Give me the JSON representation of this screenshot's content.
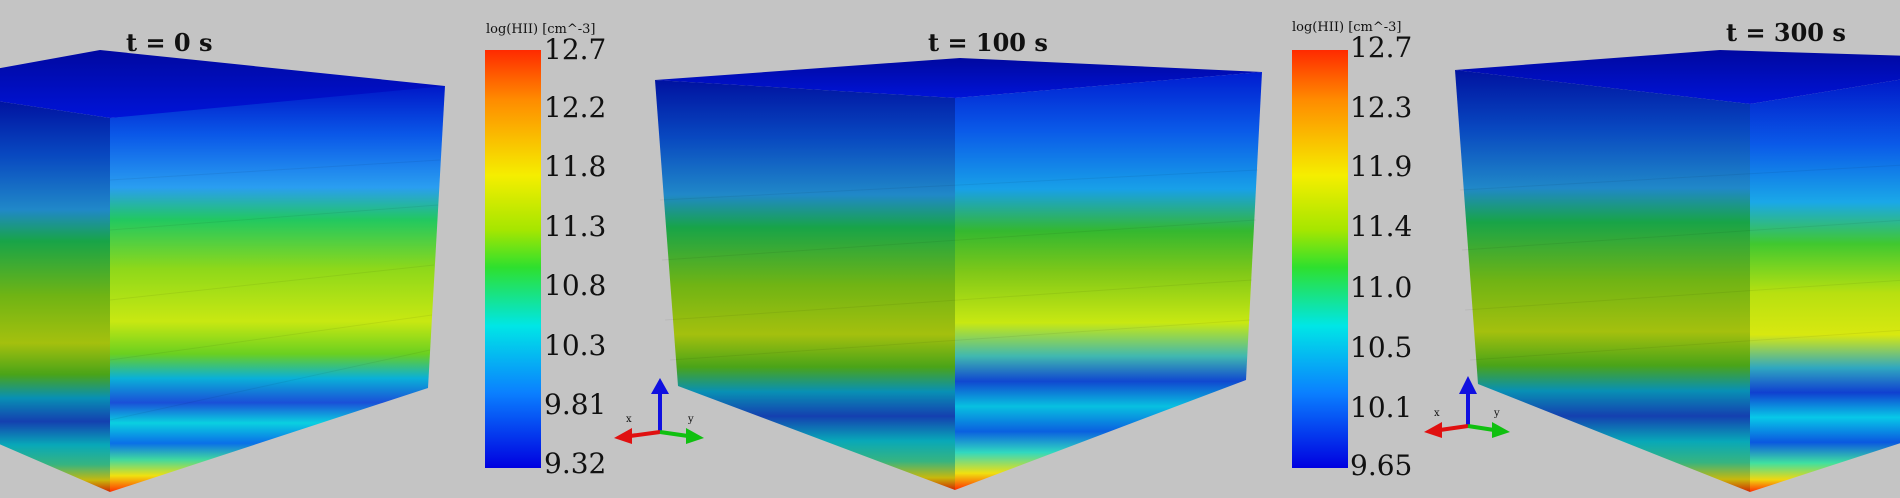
{
  "panels": [
    {
      "time_label": "t = 0 s"
    },
    {
      "time_label": "t = 100 s"
    },
    {
      "time_label": "t = 300 s"
    }
  ],
  "colorbars": [
    {
      "title": "log(HII) [cm^-3]",
      "ticks": [
        "12.7",
        "12.2",
        "11.8",
        "11.3",
        "10.8",
        "10.3",
        "9.81",
        "9.32"
      ]
    },
    {
      "title": "log(HII) [cm^-3]",
      "ticks": [
        "12.7",
        "12.3",
        "11.9",
        "11.4",
        "11.0",
        "10.5",
        "10.1",
        "9.65"
      ]
    }
  ],
  "axes_triads": [
    {
      "labels": [
        "x",
        "y"
      ]
    },
    {
      "labels": [
        "x",
        "y"
      ]
    }
  ],
  "colors": {
    "background": "#c4c4c4",
    "colormap": [
      "#ff2a00",
      "#ff8c00",
      "#f5ee00",
      "#a6e600",
      "#2ee02e",
      "#00e6e6",
      "#0a80ff",
      "#0000e0"
    ],
    "axis_x": "#e01010",
    "axis_y": "#10c010",
    "axis_z": "#1010e0"
  }
}
